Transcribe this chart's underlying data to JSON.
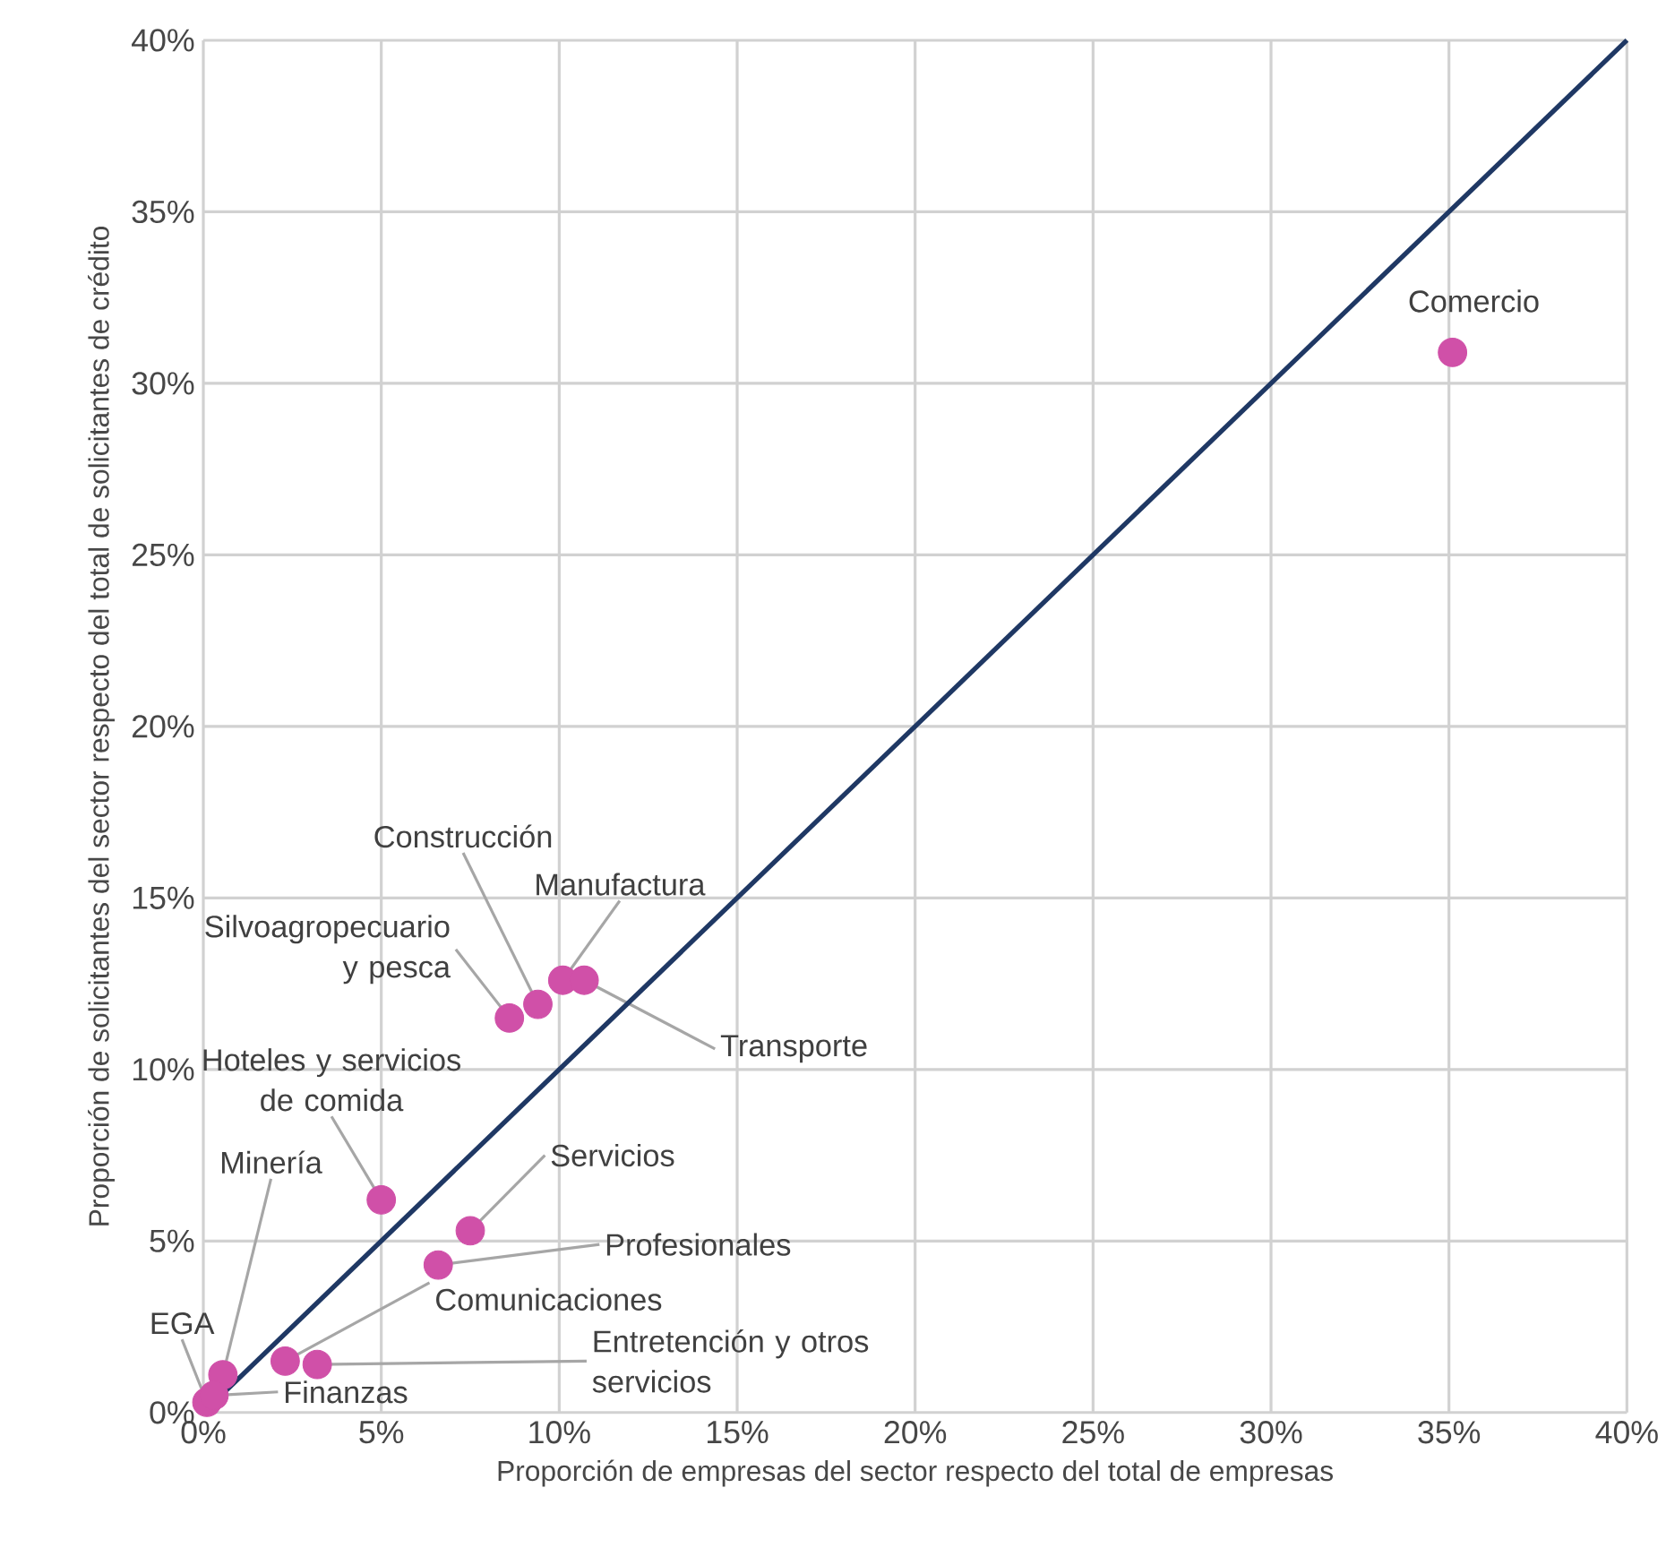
{
  "chart_data": {
    "type": "scatter",
    "xlabel": "Proporción de empresas del sector respecto del total de empresas",
    "ylabel": "Proporción de solicitantes del sector respecto del total de solicitantes de crédito",
    "xlim": [
      0,
      40
    ],
    "ylim": [
      0,
      40
    ],
    "xticks": [
      {
        "value": 0,
        "label": "0%"
      },
      {
        "value": 5,
        "label": "5%"
      },
      {
        "value": 10,
        "label": "10%"
      },
      {
        "value": 15,
        "label": "15%"
      },
      {
        "value": 20,
        "label": "20%"
      },
      {
        "value": 25,
        "label": "25%"
      },
      {
        "value": 30,
        "label": "30%"
      },
      {
        "value": 35,
        "label": "35%"
      },
      {
        "value": 40,
        "label": "40%"
      }
    ],
    "yticks": [
      {
        "value": 0,
        "label": "0%"
      },
      {
        "value": 5,
        "label": "5%"
      },
      {
        "value": 10,
        "label": "10%"
      },
      {
        "value": 15,
        "label": "15%"
      },
      {
        "value": 20,
        "label": "20%"
      },
      {
        "value": 25,
        "label": "25%"
      },
      {
        "value": 30,
        "label": "30%"
      },
      {
        "value": 35,
        "label": "35%"
      },
      {
        "value": 40,
        "label": "40%"
      }
    ],
    "grid": true,
    "marker": "circle",
    "series": [
      {
        "type": "scatter",
        "color": "#d050a8",
        "x": [
          35.1,
          9.4,
          10.1,
          8.6,
          10.7,
          5.0,
          0.55,
          7.5,
          6.6,
          2.3,
          3.2,
          0.1,
          0.3
        ],
        "values": [
          30.9,
          11.9,
          12.6,
          11.5,
          12.6,
          6.2,
          1.1,
          5.3,
          4.3,
          1.5,
          1.4,
          0.3,
          0.5
        ]
      },
      {
        "type": "line",
        "color": "#1f3864",
        "marker": "none",
        "x": [
          0,
          40
        ],
        "values": [
          0,
          40
        ]
      }
    ],
    "annotations": [
      {
        "text": "Comercio",
        "x": 35.1,
        "y": 30.9
      },
      {
        "text": "Construcción",
        "x": 9.4,
        "y": 11.9
      },
      {
        "text": "Manufactura",
        "x": 10.1,
        "y": 12.6
      },
      {
        "text": "Silvoagropecuario y pesca",
        "x": 8.6,
        "y": 11.5
      },
      {
        "text": "Transporte",
        "x": 10.7,
        "y": 12.6
      },
      {
        "text": "Hoteles y servicios de comida",
        "x": 5.0,
        "y": 6.2
      },
      {
        "text": "Minería",
        "x": 0.55,
        "y": 1.1
      },
      {
        "text": "Servicios",
        "x": 7.5,
        "y": 5.3
      },
      {
        "text": "Profesionales",
        "x": 6.6,
        "y": 4.3
      },
      {
        "text": "Comunicaciones",
        "x": 2.3,
        "y": 1.5
      },
      {
        "text": "Entretención y otros servicios",
        "x": 3.2,
        "y": 1.4
      },
      {
        "text": "EGA",
        "x": 0.1,
        "y": 0.3
      },
      {
        "text": "Finanzas",
        "x": 0.3,
        "y": 0.5
      }
    ]
  }
}
